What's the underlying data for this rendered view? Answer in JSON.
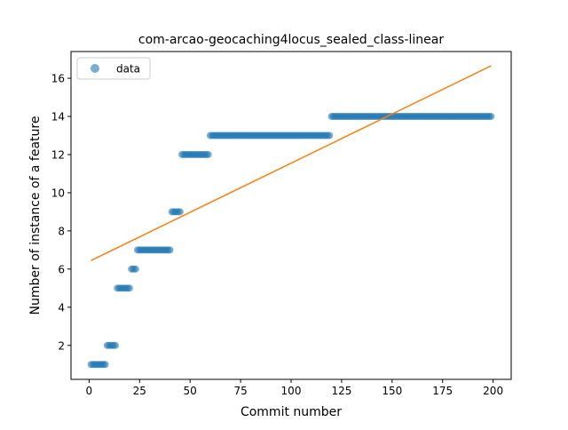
{
  "chart_data": {
    "type": "scatter",
    "title": "com-arcao-geocaching4locus_sealed_class-linear",
    "xlabel": "Commit number",
    "ylabel": "Number of instance of a feature",
    "xlim": [
      -8.95,
      208.95
    ],
    "ylim": [
      0.22,
      17.4
    ],
    "x_ticks": [
      0,
      25,
      50,
      75,
      100,
      125,
      150,
      175,
      200
    ],
    "y_ticks": [
      2,
      4,
      6,
      8,
      10,
      12,
      14,
      16
    ],
    "legend": {
      "position": "top-left",
      "entries": [
        "data"
      ]
    },
    "colors": {
      "data": "#1f77b4",
      "fit": "#ff7f0e"
    },
    "grid": false,
    "segments": [
      {
        "x_start": 1,
        "x_end": 8,
        "y": 1
      },
      {
        "x_start": 9,
        "x_end": 13,
        "y": 2
      },
      {
        "x_start": 14,
        "x_end": 20,
        "y": 5
      },
      {
        "x_start": 21,
        "x_end": 23,
        "y": 6
      },
      {
        "x_start": 24,
        "x_end": 40,
        "y": 7
      },
      {
        "x_start": 41,
        "x_end": 45,
        "y": 9
      },
      {
        "x_start": 46,
        "x_end": 59,
        "y": 12
      },
      {
        "x_start": 60,
        "x_end": 119,
        "y": 13
      },
      {
        "x_start": 120,
        "x_end": 199,
        "y": 14
      }
    ],
    "fit_line": {
      "x": [
        1,
        199
      ],
      "y": [
        6.45,
        16.65
      ]
    }
  }
}
